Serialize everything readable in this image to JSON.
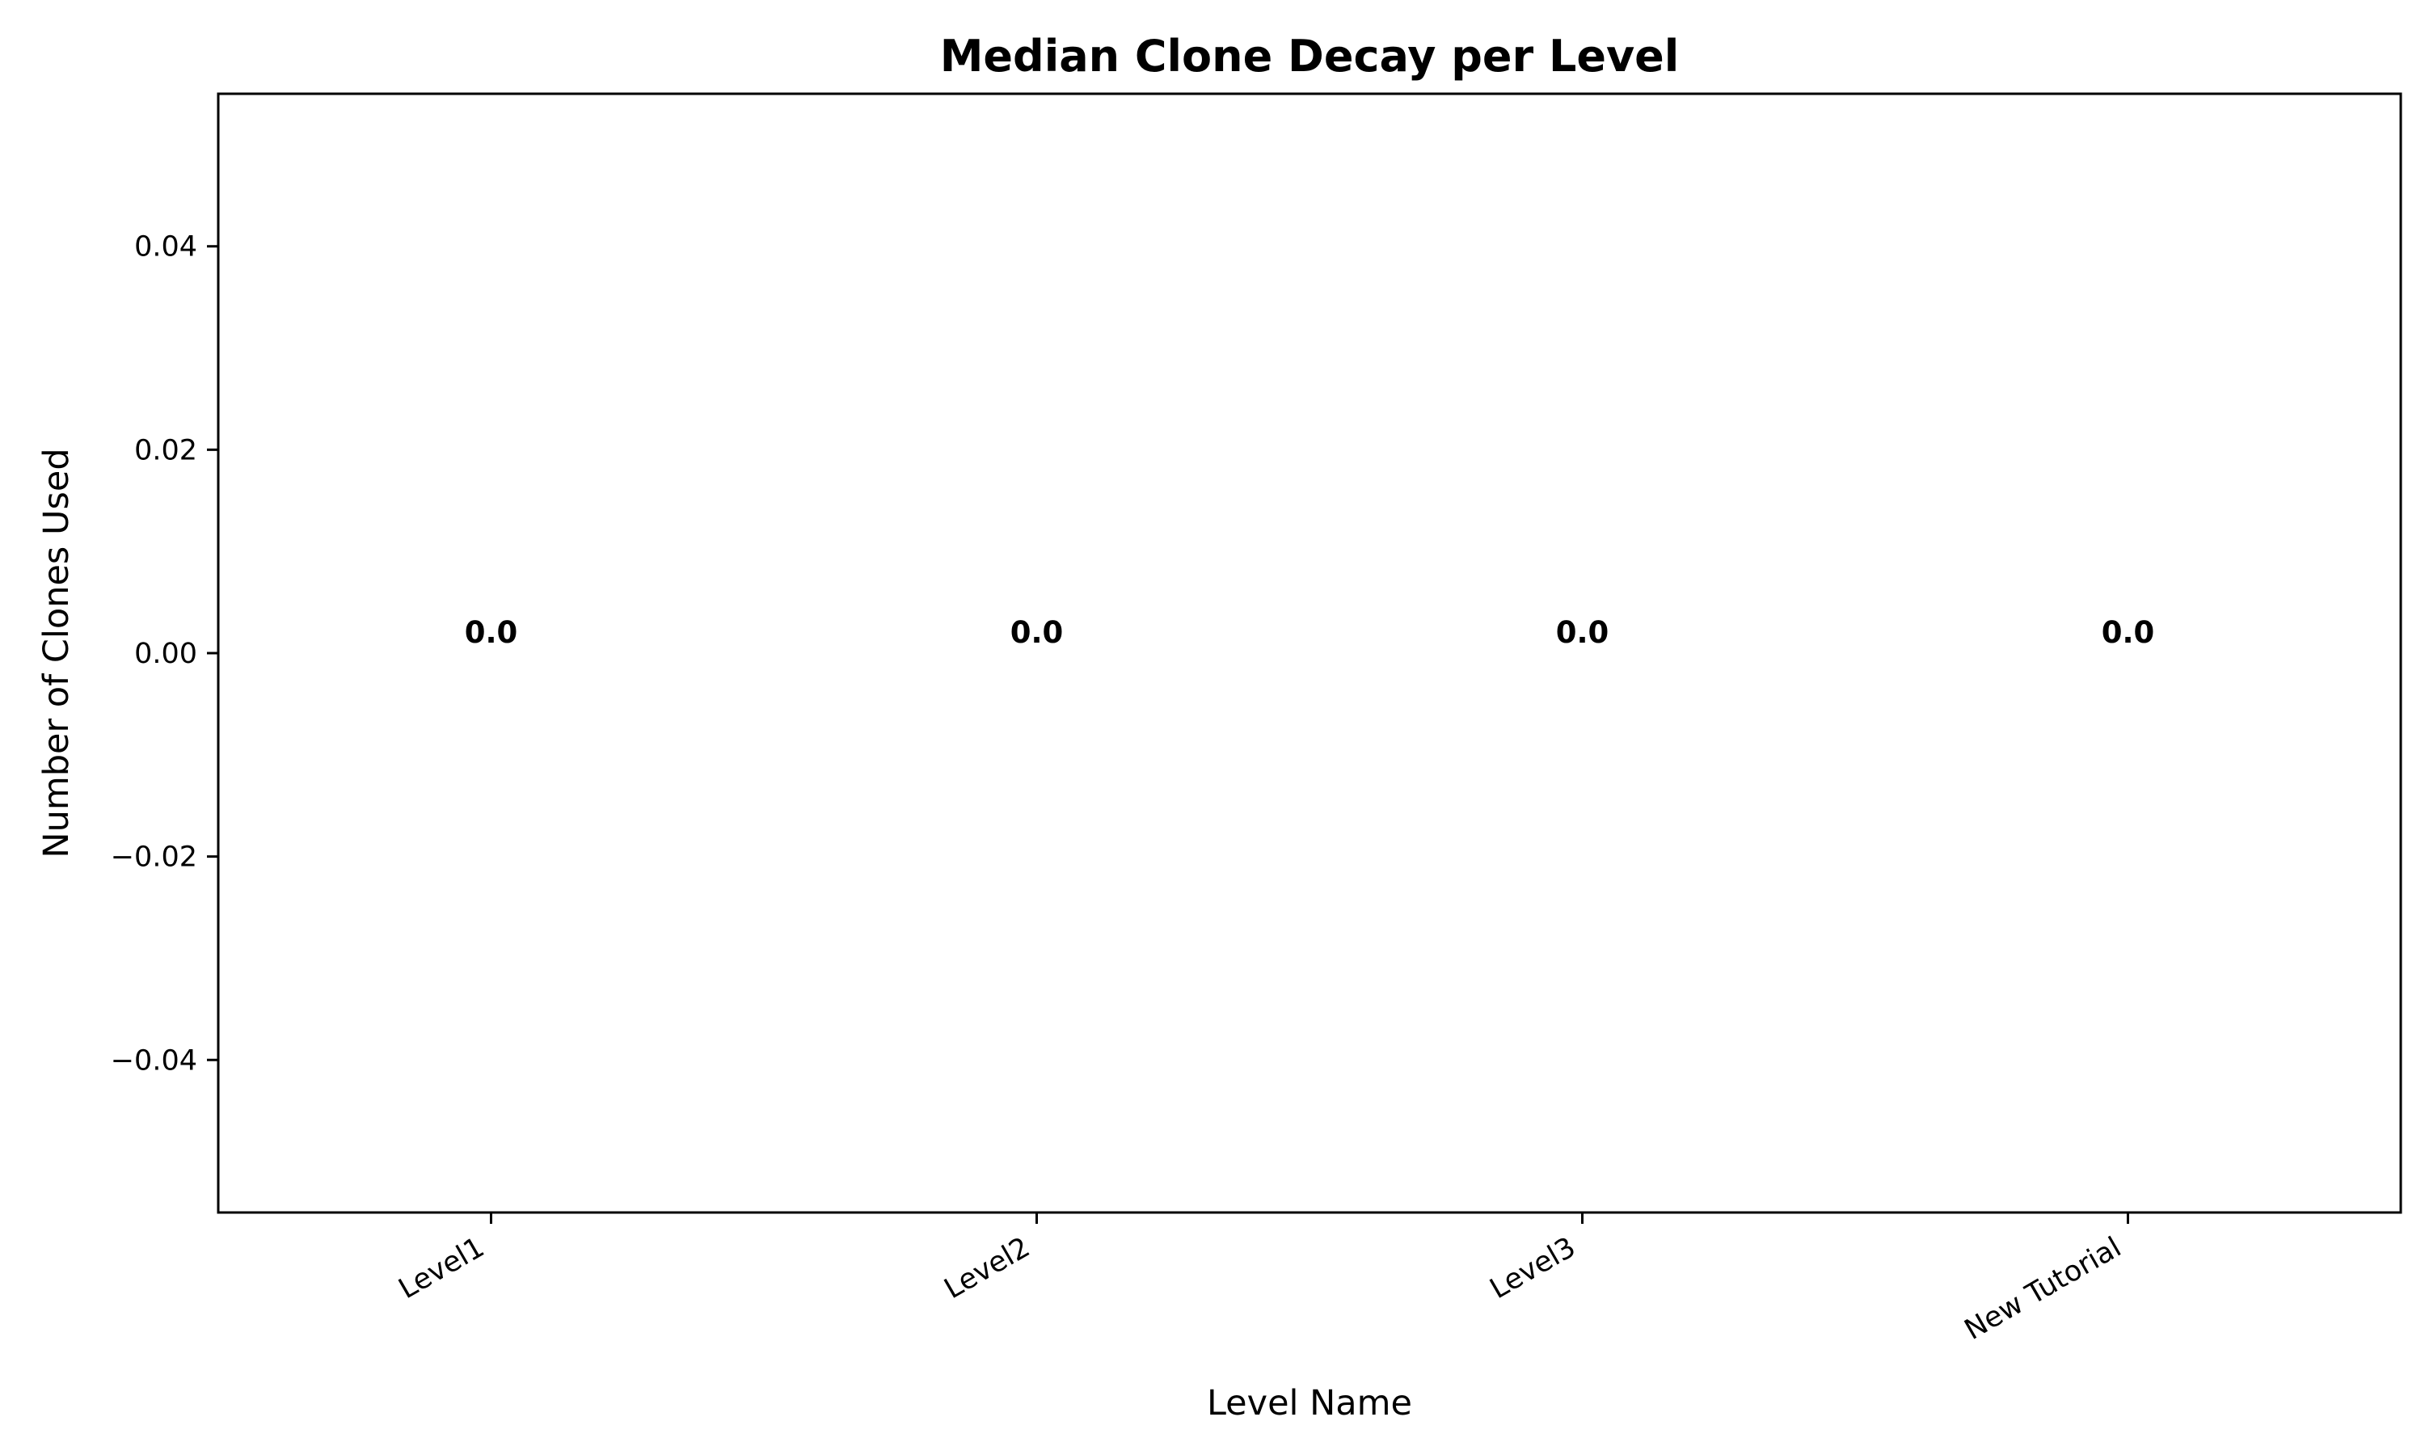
{
  "chart_data": {
    "type": "bar",
    "title": "Median Clone Decay per Level",
    "xlabel": "Level Name",
    "ylabel": "Number of Clones Used",
    "categories": [
      "Level1",
      "Level2",
      "Level3",
      "New Tutorial"
    ],
    "values": [
      0.0,
      0.0,
      0.0,
      0.0
    ],
    "data_labels": [
      "0.0",
      "0.0",
      "0.0",
      "0.0"
    ],
    "ylim": [
      -0.055,
      0.055
    ],
    "yticks": [
      -0.04,
      -0.02,
      0.0,
      0.02,
      0.04
    ],
    "ytick_labels": [
      "−0.04",
      "−0.02",
      "0.00",
      "0.02",
      "0.04"
    ],
    "grid": false,
    "legend": "none",
    "colors": {
      "bar": "#1f77b4",
      "axis": "#000000",
      "text": "#000000"
    }
  }
}
